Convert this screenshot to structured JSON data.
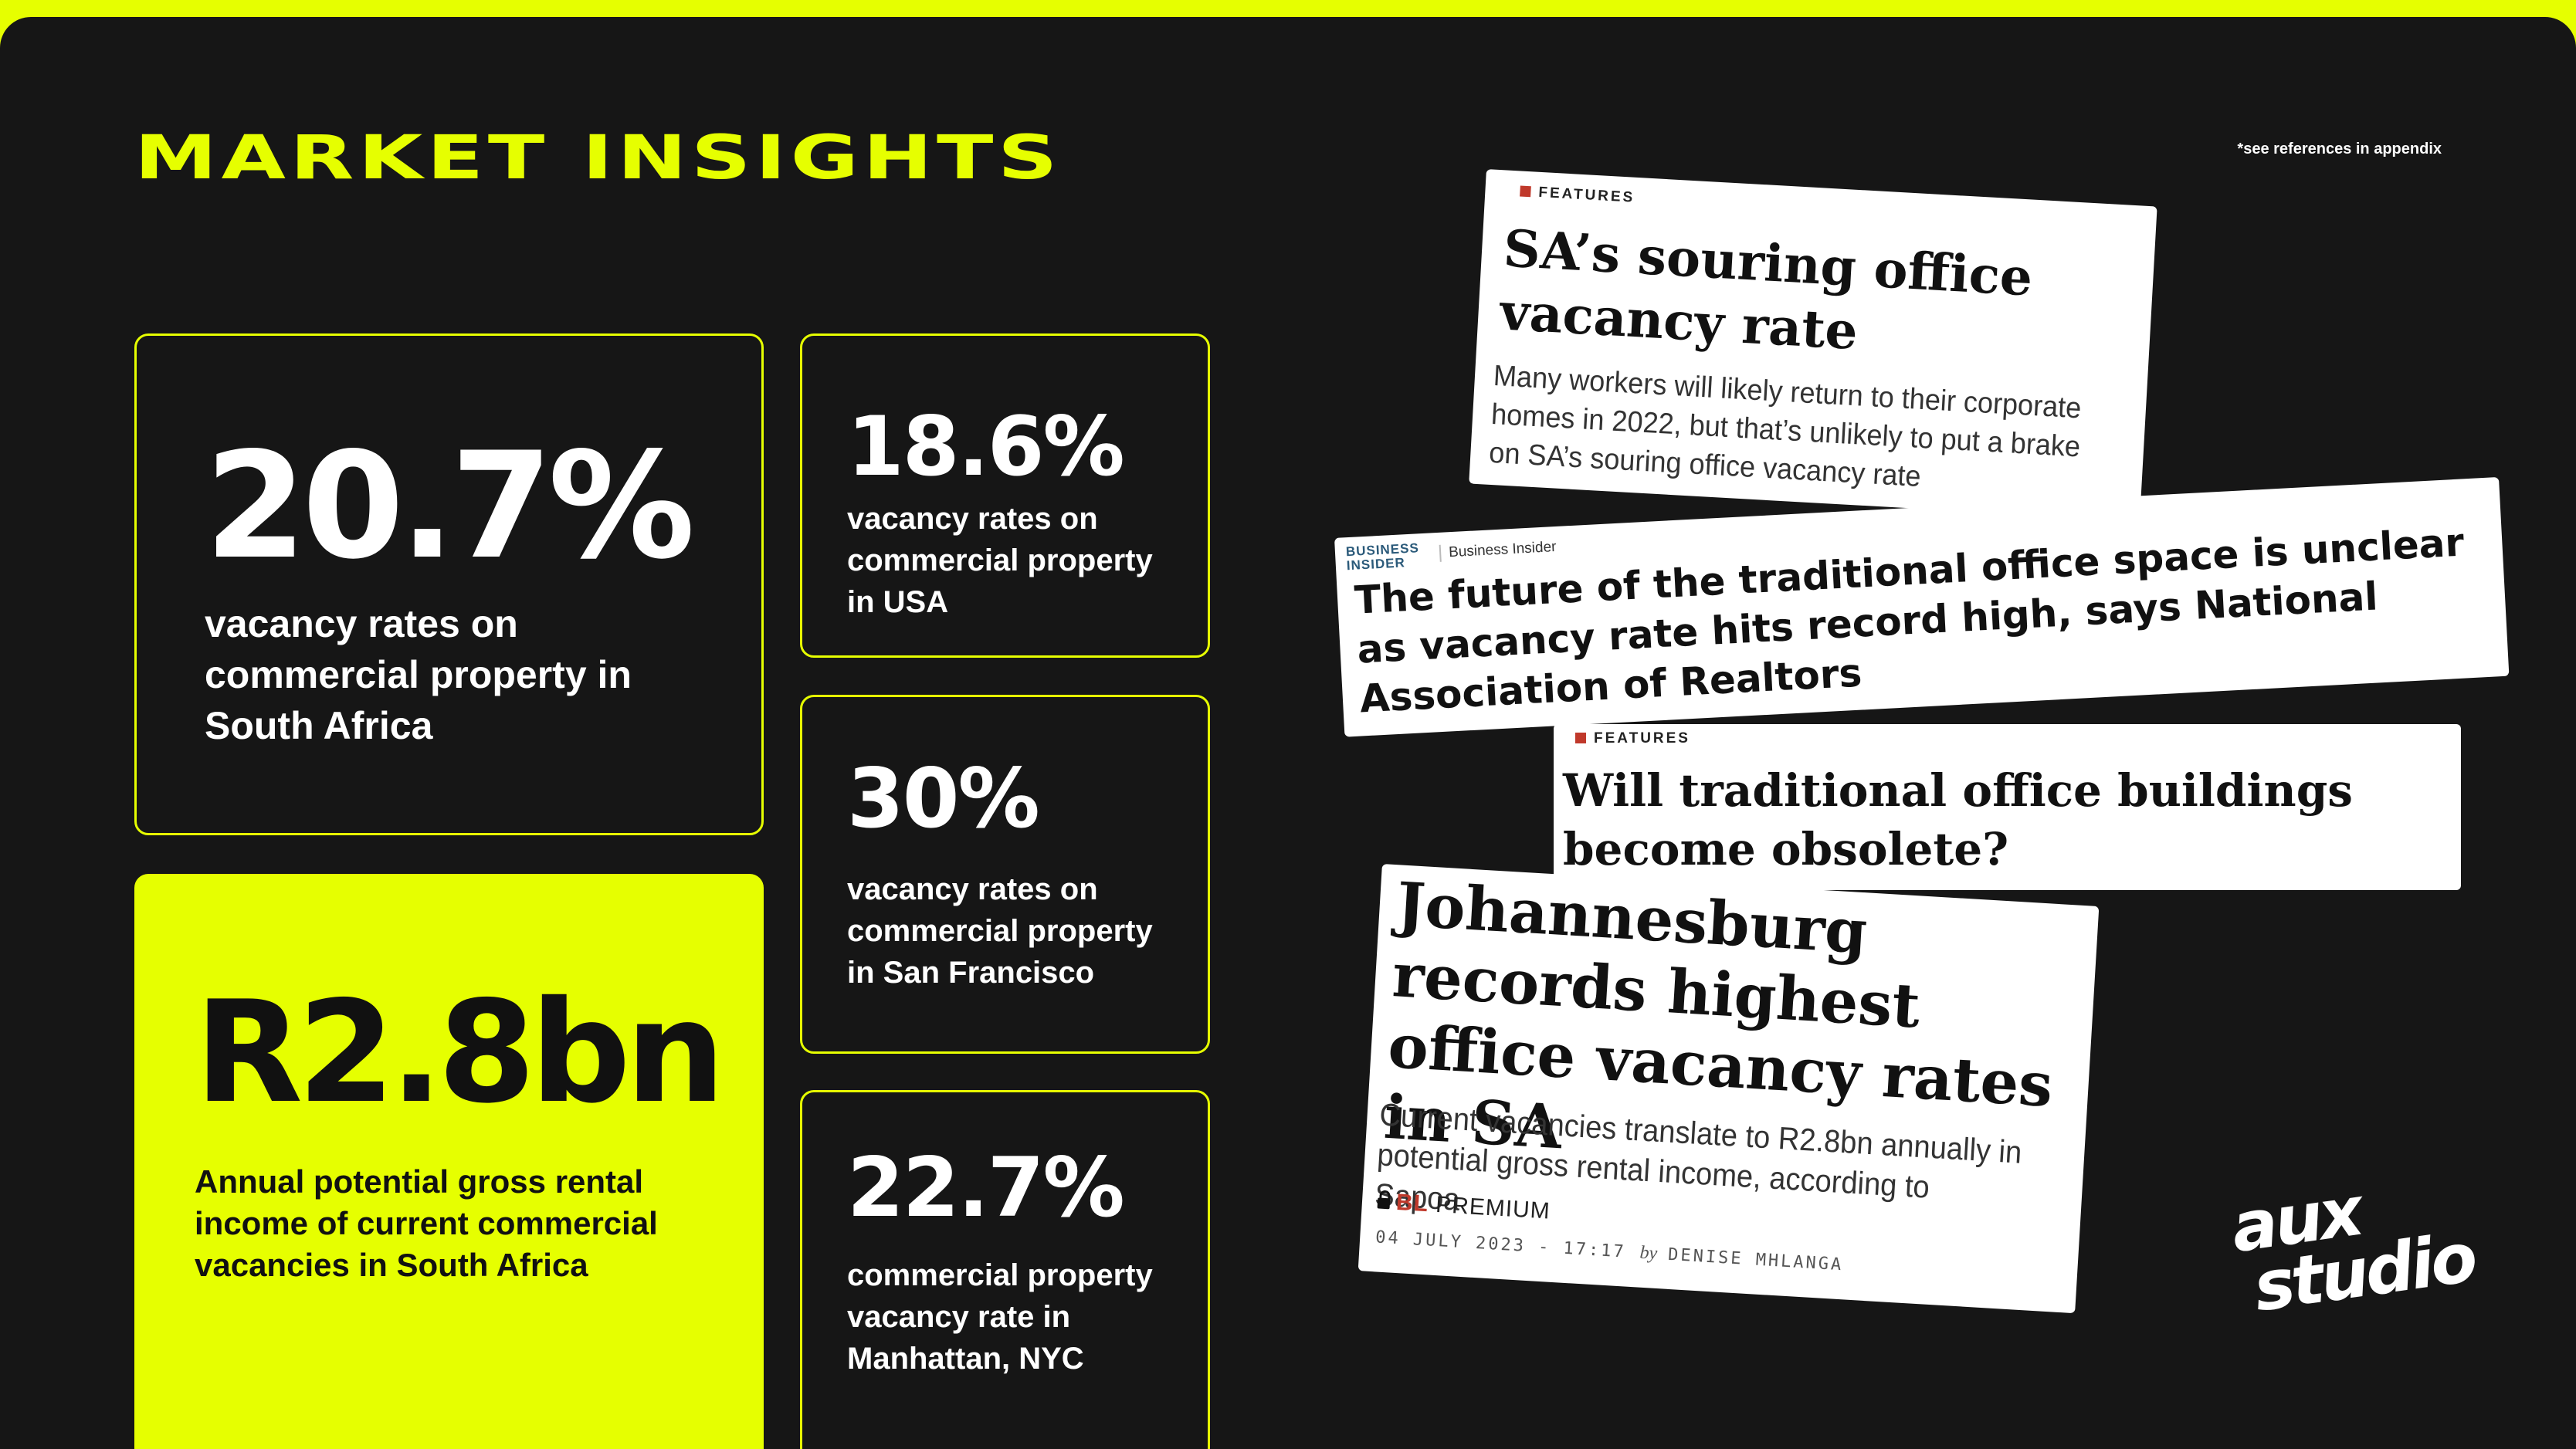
{
  "header": {
    "title": "MARKET INSIGHTS",
    "footnote": "*see references in appendix"
  },
  "stats": {
    "south_africa": {
      "value": "20.7%",
      "desc": "vacancy rates on commercial property in South Africa"
    },
    "income": {
      "value": "R2.8bn",
      "desc": "Annual potential gross rental income of current commercial vacancies in South Africa"
    },
    "usa": {
      "value": "18.6%",
      "desc": "vacancy rates on commercial property in USA"
    },
    "san_francisco": {
      "value": "30%",
      "desc": "vacancy rates on commercial property in San Francisco"
    },
    "manhattan": {
      "value": "22.7%",
      "desc": "commercial property vacancy rate in Manhattan, NYC"
    }
  },
  "clippings": {
    "c1": {
      "tag": "FEATURES",
      "headline": "SA’s souring office vacancy rate",
      "sub": "Many workers will likely return to their corporate homes in 2022, but that’s unlikely to put a brake on SA’s souring office vacancy rate"
    },
    "c2": {
      "logo_line1": "BUSINESS",
      "logo_line2": "INSIDER",
      "source": "Business Insider",
      "headline": "The future of the traditional office space is unclear as vacancy rate hits record high, says National Association of Realtors"
    },
    "c3": {
      "tag": "FEATURES",
      "headline": "Will traditional office buildings become obsolete?"
    },
    "c4": {
      "headline": "Johannesburg records highest office vacancy rates in SA",
      "sub": "Current vacancies translate to R2.8bn annually in potential gross rental income, according to Sapoa",
      "premium_brand": "BL",
      "premium_label": "PREMIUM",
      "date": "04 JULY 2023 - 17:17",
      "by": "by",
      "author": "DENISE MHLANGA"
    }
  },
  "brand": {
    "line1": "aux",
    "line2": "studio"
  },
  "colors": {
    "accent": "#e6ff00",
    "background": "#161616"
  }
}
